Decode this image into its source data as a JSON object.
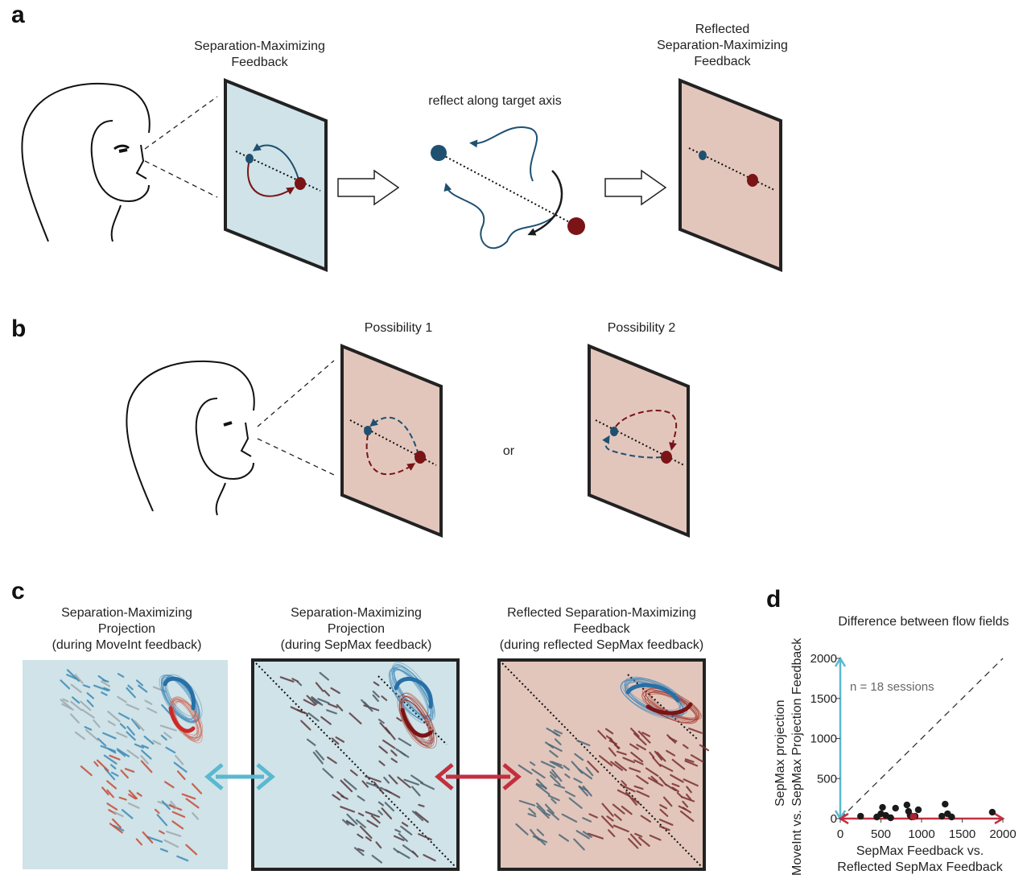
{
  "panels": {
    "a": {
      "letter": "a",
      "caption_left": [
        "Separation-Maximizing",
        "Feedback"
      ],
      "caption_middle": "reflect along target axis",
      "caption_right": [
        "Reflected",
        "Separation-Maximizing",
        "Feedback"
      ]
    },
    "b": {
      "letter": "b",
      "possibility1": "Possibility 1",
      "possibility2": "Possibility 2",
      "or_label": "or"
    },
    "c": {
      "letter": "c",
      "titles": [
        [
          "Separation-Maximizing",
          "Projection",
          "(during MoveInt feedback)"
        ],
        [
          "Separation-Maximizing",
          "Projection",
          "(during SepMax feedback)"
        ],
        [
          "Reflected Separation-Maximizing",
          "Feedback",
          "(during reflected SepMax feedback)"
        ]
      ]
    },
    "d": {
      "letter": "d",
      "title": "Difference between flow fields",
      "annotation": "n = 18 sessions"
    }
  },
  "colors": {
    "blue_screen": "#cfe3e8",
    "red_screen": "#e2c6bc",
    "blue_target": "#1f5070",
    "red_target": "#7a1416",
    "blue_arrow": "#5ab8cf",
    "red_arrow": "#c23040"
  },
  "chart_data": {
    "type": "scatter",
    "title": "Difference between flow fields",
    "xlabel": [
      "SepMax Feedback vs.",
      "Reflected SepMax Feedback"
    ],
    "ylabel": [
      "SepMax projection",
      "MoveInt vs. SepMax Projection Feedback"
    ],
    "xlim": [
      0,
      2000
    ],
    "ylim": [
      0,
      2000
    ],
    "xticks": [
      0,
      500,
      1000,
      1500,
      2000
    ],
    "yticks": [
      0,
      500,
      1000,
      1500,
      2000
    ],
    "identity_line": true,
    "points": [
      {
        "x": 250,
        "y": 30
      },
      {
        "x": 450,
        "y": 20
      },
      {
        "x": 500,
        "y": 60
      },
      {
        "x": 520,
        "y": 140
      },
      {
        "x": 560,
        "y": 40
      },
      {
        "x": 680,
        "y": 130
      },
      {
        "x": 820,
        "y": 170
      },
      {
        "x": 840,
        "y": 90
      },
      {
        "x": 860,
        "y": 40
      },
      {
        "x": 880,
        "y": 20
      },
      {
        "x": 960,
        "y": 110
      },
      {
        "x": 1250,
        "y": 30
      },
      {
        "x": 1290,
        "y": 180
      },
      {
        "x": 1320,
        "y": 60
      },
      {
        "x": 1370,
        "y": 20
      },
      {
        "x": 1870,
        "y": 80
      },
      {
        "x": 920,
        "y": 30
      },
      {
        "x": 620,
        "y": 10
      }
    ],
    "highlight_point": {
      "x": 900,
      "y": 25
    }
  }
}
